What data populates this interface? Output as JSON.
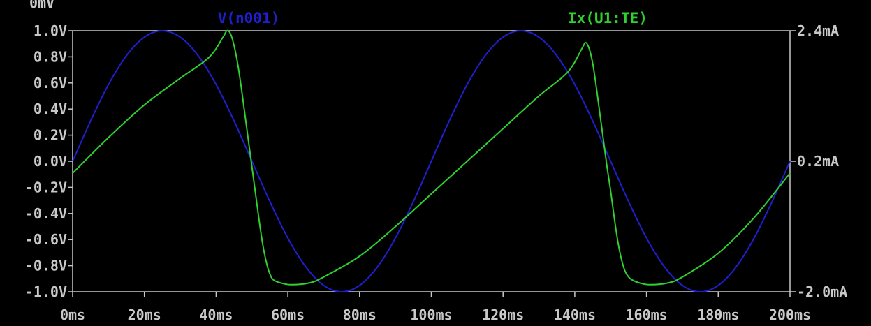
{
  "chart_data": {
    "type": "line",
    "background": "#000000",
    "axis_color": "#c8c8c8",
    "top_clipped_label": "0mV",
    "x": {
      "ticks": [
        0,
        20,
        40,
        60,
        80,
        100,
        120,
        140,
        160,
        180,
        200
      ],
      "tick_labels": [
        "0ms",
        "20ms",
        "40ms",
        "60ms",
        "80ms",
        "100ms",
        "120ms",
        "140ms",
        "160ms",
        "180ms",
        "200ms"
      ],
      "range": [
        0,
        200
      ],
      "unit": "ms"
    },
    "y_left": {
      "ticks": [
        1.0,
        0.8,
        0.6,
        0.4,
        0.2,
        0.0,
        -0.2,
        -0.4,
        -0.6,
        -0.8,
        -1.0
      ],
      "tick_labels": [
        "1.0V",
        "0.8V",
        "0.6V",
        "0.4V",
        "0.2V",
        "0.0V",
        "-0.2V",
        "-0.4V",
        "-0.6V",
        "-0.8V",
        "-1.0V"
      ],
      "range": [
        -1.0,
        1.0
      ],
      "unit": "V"
    },
    "y_right": {
      "ticks": [
        2.4,
        0.2,
        -2.0
      ],
      "tick_labels": [
        "2.4mA",
        "0.2mA",
        "-2.0mA"
      ],
      "range": [
        -2.0,
        2.4
      ],
      "unit": "mA"
    },
    "series": [
      {
        "name": "V(n001)",
        "color": "#1f1fd0",
        "axis": "left",
        "x": [
          0,
          5,
          10,
          15,
          20,
          25,
          30,
          35,
          40,
          45,
          50,
          55,
          60,
          65,
          70,
          75,
          80,
          85,
          90,
          95,
          100,
          105,
          110,
          115,
          120,
          125,
          130,
          135,
          140,
          145,
          150,
          155,
          160,
          165,
          170,
          175,
          180,
          185,
          190,
          195,
          200
        ],
        "y": [
          0.0,
          0.309,
          0.588,
          0.809,
          0.951,
          1.0,
          0.951,
          0.809,
          0.588,
          0.309,
          0.0,
          -0.309,
          -0.588,
          -0.809,
          -0.951,
          -1.0,
          -0.951,
          -0.809,
          -0.588,
          -0.309,
          0.0,
          0.309,
          0.588,
          0.809,
          0.951,
          1.0,
          0.951,
          0.809,
          0.588,
          0.309,
          0.0,
          -0.309,
          -0.588,
          -0.809,
          -0.951,
          -1.0,
          -0.951,
          -0.809,
          -0.588,
          -0.309,
          0.0
        ]
      },
      {
        "name": "Ix(U1:TE)",
        "color": "#2fd02f",
        "axis": "right",
        "x": [
          0,
          10,
          20,
          30,
          38,
          42,
          43,
          44,
          45,
          46,
          47,
          48,
          49,
          50,
          51,
          52,
          53,
          54,
          55,
          56,
          58,
          61,
          66,
          70,
          80,
          90,
          100,
          110,
          120,
          130,
          138,
          142,
          143,
          144,
          145,
          146,
          147,
          148,
          149,
          150,
          151,
          152,
          153,
          154,
          155,
          156,
          158,
          161,
          166,
          170,
          180,
          190,
          200
        ],
        "y": [
          0.0,
          0.6,
          1.15,
          1.6,
          1.95,
          2.3,
          2.4,
          2.35,
          2.15,
          1.85,
          1.45,
          1.0,
          0.55,
          0.1,
          -0.35,
          -0.8,
          -1.2,
          -1.5,
          -1.7,
          -1.8,
          -1.85,
          -1.88,
          -1.85,
          -1.75,
          -1.4,
          -0.9,
          -0.35,
          0.2,
          0.75,
          1.3,
          1.7,
          2.1,
          2.2,
          2.1,
          1.85,
          1.45,
          1.0,
          0.55,
          0.1,
          -0.3,
          -0.75,
          -1.15,
          -1.45,
          -1.65,
          -1.75,
          -1.8,
          -1.85,
          -1.88,
          -1.85,
          -1.75,
          -1.35,
          -0.75,
          0.0
        ]
      }
    ]
  }
}
